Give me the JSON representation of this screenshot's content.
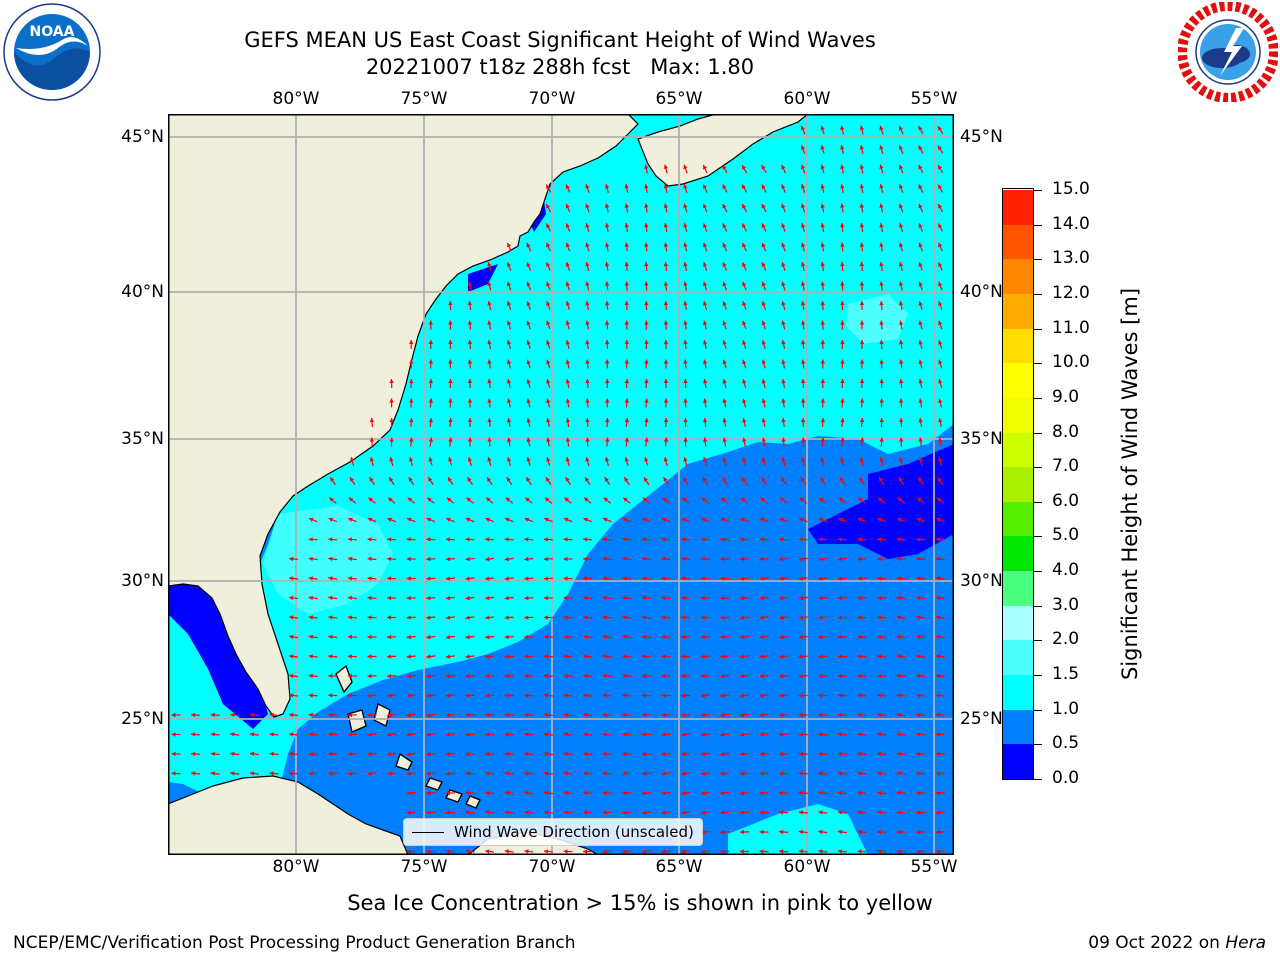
{
  "title": {
    "line1": "GEFS MEAN US East Coast Significant Height of Wind Waves",
    "line2": "20221007 t18z 288h fcst   Max: 1.80"
  },
  "axes": {
    "lon_labels": [
      "80°W",
      "75°W",
      "70°W",
      "65°W",
      "60°W",
      "55°W"
    ],
    "lat_labels": [
      "45°N",
      "40°N",
      "35°N",
      "30°N",
      "25°N"
    ]
  },
  "legend": {
    "label": "Wind Wave Direction (unscaled)"
  },
  "colorbar": {
    "title": "Significant Height of Wind Waves [m]",
    "tick_labels": [
      "15.0",
      "14.0",
      "13.0",
      "12.0",
      "11.0",
      "10.0",
      "9.0",
      "8.0",
      "7.0",
      "6.0",
      "5.0",
      "4.0",
      "3.0",
      "2.0",
      "1.5",
      "1.0",
      "0.5",
      "0.0"
    ],
    "levels": [
      0,
      0.5,
      1.0,
      1.5,
      2.0,
      3.0,
      4.0,
      5.0,
      6.0,
      7.0,
      8.0,
      9.0,
      10.0,
      11.0,
      12.0,
      13.0,
      14.0,
      15.0
    ],
    "colors": [
      "#0000ff",
      "#0080ff",
      "#00ffff",
      "#4dffff",
      "#aaffff",
      "#4dff80",
      "#00e600",
      "#55ee00",
      "#aaee00",
      "#ccff00",
      "#eeff00",
      "#ffff00",
      "#ffdd00",
      "#ffaa00",
      "#ff8800",
      "#ff5500",
      "#ff2200"
    ]
  },
  "footnote": "Sea Ice Concentration > 15% is shown in pink to yellow",
  "credit": "NCEP/EMC/Verification Post Processing Product Generation Branch",
  "datestamp": {
    "date": "09 Oct 2022 on",
    "machine": "Hera"
  },
  "colors": {
    "land": "#efefdc",
    "arrow": "#ff0000",
    "grid": "#b0b0b0"
  },
  "icons": {
    "left_logo": "noaa-logo",
    "right_logo": "nws-logo"
  }
}
